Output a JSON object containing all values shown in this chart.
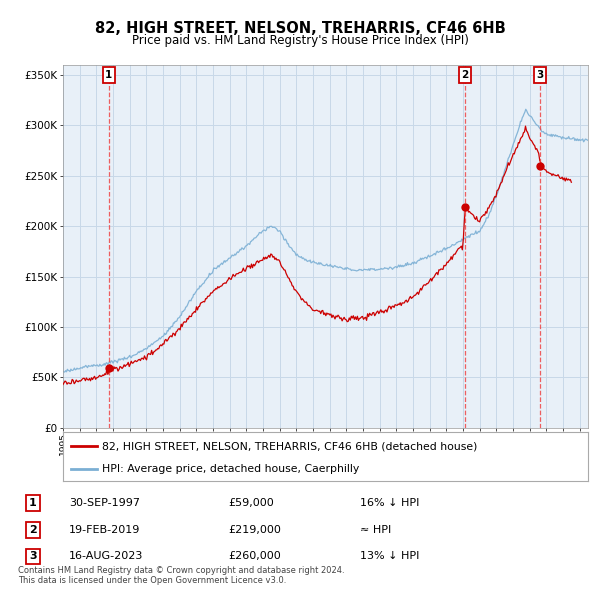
{
  "title": "82, HIGH STREET, NELSON, TREHARRIS, CF46 6HB",
  "subtitle": "Price paid vs. HM Land Registry's House Price Index (HPI)",
  "legend_line1": "82, HIGH STREET, NELSON, TREHARRIS, CF46 6HB (detached house)",
  "legend_line2": "HPI: Average price, detached house, Caerphilly",
  "sale_points": [
    {
      "label": "1",
      "date": "30-SEP-1997",
      "price": 59000,
      "hpi_note": "16% ↓ HPI",
      "x_year": 1997.75
    },
    {
      "label": "2",
      "date": "19-FEB-2019",
      "price": 219000,
      "hpi_note": "≈ HPI",
      "x_year": 2019.13
    },
    {
      "label": "3",
      "date": "16-AUG-2023",
      "price": 260000,
      "hpi_note": "13% ↓ HPI",
      "x_year": 2023.63
    }
  ],
  "table_data": [
    [
      "1",
      "30-SEP-1997",
      "£59,000",
      "16% ↓ HPI"
    ],
    [
      "2",
      "19-FEB-2019",
      "£219,000",
      "≈ HPI"
    ],
    [
      "3",
      "16-AUG-2023",
      "£260,000",
      "13% ↓ HPI"
    ]
  ],
  "footer": "Contains HM Land Registry data © Crown copyright and database right 2024.\nThis data is licensed under the Open Government Licence v3.0.",
  "hpi_color": "#7bafd4",
  "price_color": "#cc0000",
  "sale_marker_color": "#cc0000",
  "dashed_line_color": "#ee4444",
  "background_color": "#ffffff",
  "chart_bg_color": "#e8f0f8",
  "grid_color": "#c8d8e8",
  "ylim": [
    0,
    360000
  ],
  "xlim_start": 1995.0,
  "xlim_end": 2026.5,
  "yticks": [
    0,
    50000,
    100000,
    150000,
    200000,
    250000,
    300000,
    350000
  ],
  "ylabels": [
    "£0",
    "£50K",
    "£100K",
    "£150K",
    "£200K",
    "£250K",
    "£300K",
    "£350K"
  ]
}
